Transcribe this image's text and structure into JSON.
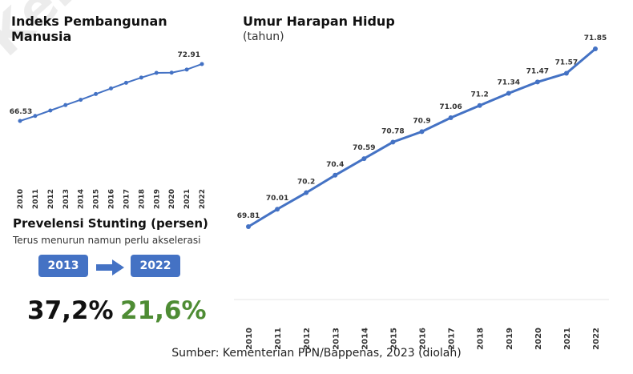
{
  "watermark": "Kemen",
  "chart_data": [
    {
      "type": "line",
      "title": "Indeks Pembangunan Manusia",
      "x": [
        "2010",
        "2011",
        "2012",
        "2013",
        "2014",
        "2015",
        "2016",
        "2017",
        "2018",
        "2019",
        "2020",
        "2021",
        "2022"
      ],
      "values": [
        66.53,
        67.09,
        67.7,
        68.31,
        68.9,
        69.55,
        70.18,
        70.81,
        71.39,
        71.92,
        71.94,
        72.29,
        72.91
      ],
      "labels": [
        {
          "index": 0,
          "text": "66.53"
        },
        {
          "index": 12,
          "text": "72.91"
        }
      ],
      "ylim": [
        63.3,
        74.7
      ],
      "color": "#4472c4"
    },
    {
      "type": "line",
      "title": "Umur Harapan Hidup",
      "subtitle": "(tahun)",
      "x": [
        "2010",
        "2011",
        "2012",
        "2013",
        "2014",
        "2015",
        "2016",
        "2017",
        "2018",
        "2019",
        "2020",
        "2021",
        "2022"
      ],
      "values": [
        69.81,
        70.01,
        70.2,
        70.4,
        70.59,
        70.78,
        70.9,
        71.06,
        71.2,
        71.34,
        71.47,
        71.57,
        71.85
      ],
      "labels": [
        "69.81",
        "70.01",
        "70.2",
        "70.4",
        "70.59",
        "70.78",
        "70.9",
        "71.06",
        "71.2",
        "71.34",
        "71.47",
        "71.57",
        "71.85"
      ],
      "color": "#4472c4"
    }
  ],
  "stunting": {
    "title": "Prevelensi Stunting (persen)",
    "subtitle": "Terus menurun namun perlu akselerasi",
    "year_from": "2013",
    "year_to": "2022",
    "value_from": "37,2%",
    "value_to": "21,6%",
    "color_from": "#111111",
    "color_to": "#4e8c34",
    "box_color": "#4472c4"
  },
  "source": "Sumber: Kementerian PPN/Bappenas, 2023 (diolah)"
}
